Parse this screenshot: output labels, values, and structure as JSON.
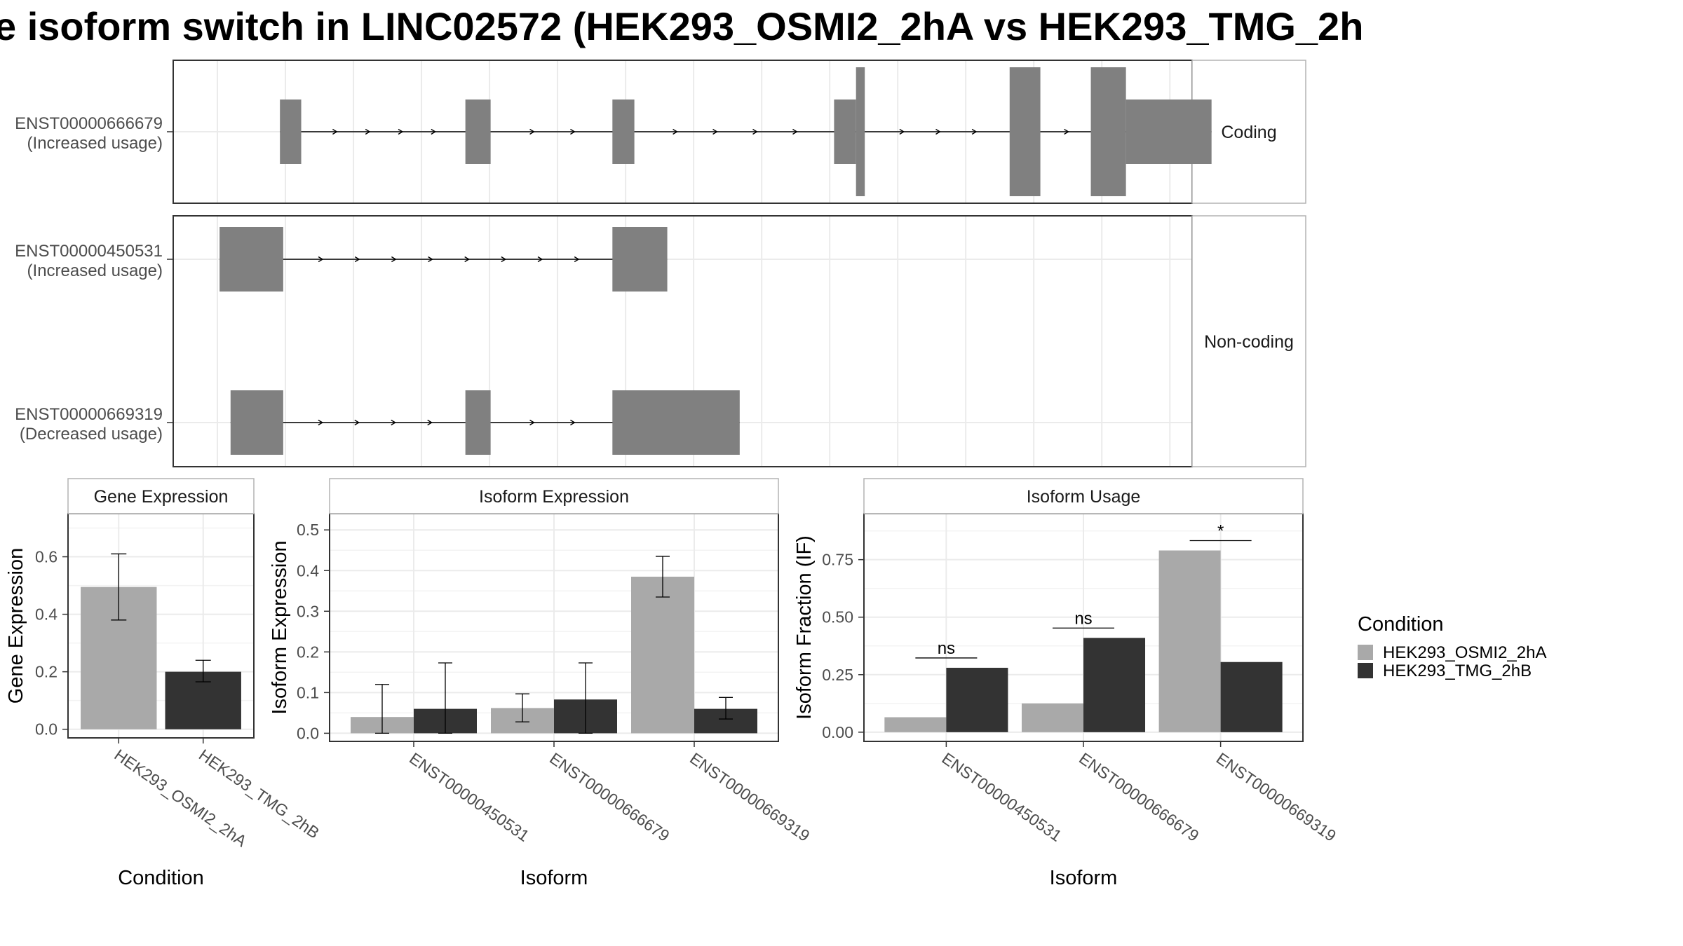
{
  "title": "e isoform switch in LINC02572 (HEK293_OSMI2_2hA vs HEK293_TMG_2h",
  "colors": {
    "exon": "#808080",
    "condition_a": "#a9a9a9",
    "condition_b": "#333333",
    "grid": "#ebebeb",
    "panel_border": "#333333",
    "strip_border": "#b3b3b3"
  },
  "structure": {
    "groups": [
      {
        "label": "Coding",
        "transcripts": [
          "ENST00000666679"
        ]
      },
      {
        "label": "Non-coding",
        "transcripts": [
          "ENST00000450531",
          "ENST00000669319"
        ]
      }
    ],
    "transcripts": [
      {
        "id": "ENST00000666679",
        "usage": "(Increased usage)",
        "exons": [
          {
            "start": 0.285,
            "end": 0.382,
            "coding": false
          },
          {
            "start": 1.13,
            "end": 1.245,
            "coding": false
          },
          {
            "start": 1.8,
            "end": 1.9,
            "coding": false
          },
          {
            "start": 2.81,
            "end": 2.91,
            "coding": false
          },
          {
            "start": 2.91,
            "end": 2.95,
            "coding": true
          },
          {
            "start": 3.61,
            "end": 3.75,
            "coding": true
          },
          {
            "start": 3.98,
            "end": 4.14,
            "coding": true
          },
          {
            "start": 4.14,
            "end": 4.53,
            "coding": false
          }
        ]
      },
      {
        "id": "ENST00000450531",
        "usage": "(Increased usage)",
        "exons": [
          {
            "start": 0.01,
            "end": 0.3,
            "coding": false
          },
          {
            "start": 1.8,
            "end": 2.05,
            "coding": false
          }
        ]
      },
      {
        "id": "ENST00000669319",
        "usage": "(Decreased usage)",
        "exons": [
          {
            "start": 0.06,
            "end": 0.3,
            "coding": false
          },
          {
            "start": 1.13,
            "end": 1.245,
            "coding": false
          },
          {
            "start": 1.8,
            "end": 2.38,
            "coding": false
          }
        ]
      }
    ]
  },
  "chart_data": [
    {
      "type": "bar",
      "title": "Gene Expression",
      "xlabel": "Condition",
      "ylabel": "Gene Expression",
      "categories": [
        "HEK293_OSMI2_2hA",
        "HEK293_TMG_2hB"
      ],
      "values": [
        0.495,
        0.2
      ],
      "errors": [
        [
          0.38,
          0.61
        ],
        [
          0.165,
          0.24
        ]
      ],
      "ylim": [
        -0.03,
        0.75
      ],
      "yticks": [
        0.0,
        0.2,
        0.4,
        0.6
      ],
      "ytick_labels": [
        "0.0",
        "0.2",
        "0.4",
        "0.6"
      ]
    },
    {
      "type": "bar",
      "title": "Isoform Expression",
      "xlabel": "Isoform",
      "ylabel": "Isoform Expression",
      "categories": [
        "ENST00000450531",
        "ENST00000666679",
        "ENST00000669319"
      ],
      "series": [
        {
          "name": "HEK293_OSMI2_2hA",
          "values": [
            0.04,
            0.062,
            0.385
          ],
          "errors": [
            [
              0.0,
              0.12
            ],
            [
              0.028,
              0.097
            ],
            [
              0.335,
              0.435
            ]
          ]
        },
        {
          "name": "HEK293_TMG_2hB",
          "values": [
            0.06,
            0.083,
            0.06
          ],
          "errors": [
            [
              0.0,
              0.173
            ],
            [
              0.0,
              0.173
            ],
            [
              0.035,
              0.088
            ]
          ]
        }
      ],
      "ylim": [
        -0.02,
        0.54
      ],
      "yticks": [
        0.0,
        0.1,
        0.2,
        0.3,
        0.4,
        0.5
      ],
      "ytick_labels": [
        "0.0",
        "0.1",
        "0.2",
        "0.3",
        "0.4",
        "0.5"
      ]
    },
    {
      "type": "bar",
      "title": "Isoform Usage",
      "xlabel": "Isoform",
      "ylabel": "Isoform Fraction (IF)",
      "categories": [
        "ENST00000450531",
        "ENST00000666679",
        "ENST00000669319"
      ],
      "series": [
        {
          "name": "HEK293_OSMI2_2hA",
          "values": [
            0.065,
            0.125,
            0.79
          ]
        },
        {
          "name": "HEK293_TMG_2hB",
          "values": [
            0.28,
            0.41,
            0.305
          ]
        }
      ],
      "significance": [
        "ns",
        "ns",
        "*"
      ],
      "ylim": [
        -0.04,
        0.95
      ],
      "yticks": [
        0.0,
        0.25,
        0.5,
        0.75
      ],
      "ytick_labels": [
        "0.00",
        "0.25",
        "0.50",
        "0.75"
      ]
    }
  ],
  "legend": {
    "title": "Condition",
    "items": [
      "HEK293_OSMI2_2hA",
      "HEK293_TMG_2hB"
    ]
  }
}
